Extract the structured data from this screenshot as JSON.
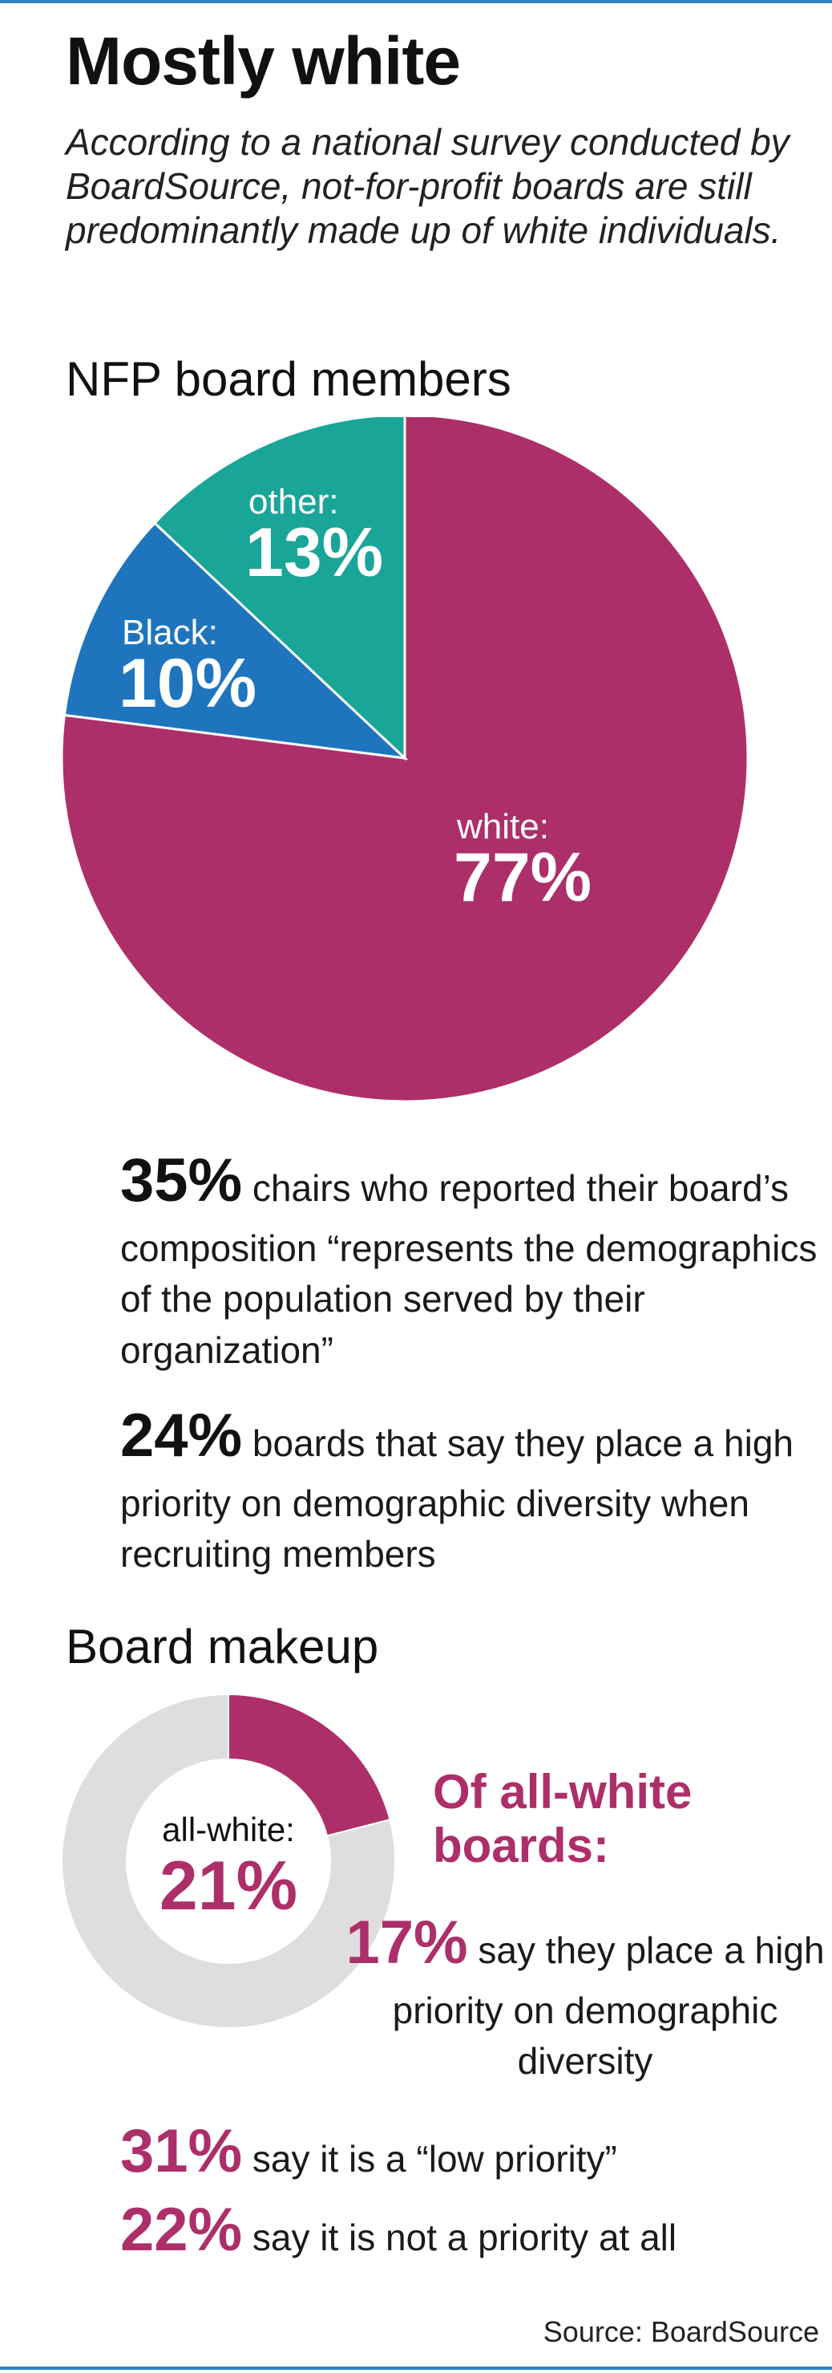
{
  "title": "Mostly white",
  "subtitle": "According to a national survey conducted by BoardSource, not-for-profit boards are still predominantly made up of white individuals.",
  "chart_data": [
    {
      "type": "pie",
      "title": "NFP board members",
      "slices": [
        {
          "name": "white",
          "label": "white:",
          "value": 77,
          "display": "77%",
          "color": "#ad2f6a"
        },
        {
          "name": "Black",
          "label": "Black:",
          "value": 10,
          "display": "10%",
          "color": "#1f75bd"
        },
        {
          "name": "other",
          "label": "other:",
          "value": 13,
          "display": "13%",
          "color": "#19a597"
        }
      ]
    },
    {
      "type": "pie",
      "title": "Board makeup",
      "slices": [
        {
          "name": "all-white",
          "label": "all-white:",
          "value": 21,
          "display": "21%",
          "color": "#ad2f6a"
        },
        {
          "name": "rest",
          "label": "",
          "value": 79,
          "display": "",
          "color": "#dedede"
        }
      ]
    }
  ],
  "stats": [
    {
      "value": "35%",
      "text": " chairs who reported their board’s composition “represents the demographics of the population served by their organization”"
    },
    {
      "value": "24%",
      "text": "  boards that say they place a high priority on demographic diversity when recruiting members"
    }
  ],
  "all_white": {
    "heading": "Of all-white boards:",
    "stats": [
      {
        "value": "17%",
        "text": " say they place a high priority on demographic diversity"
      },
      {
        "value": "31%",
        "text": " say it is a “low priority”"
      },
      {
        "value": "22%",
        "text": " say it is not a priority at all"
      }
    ]
  },
  "source": "Source: BoardSource"
}
